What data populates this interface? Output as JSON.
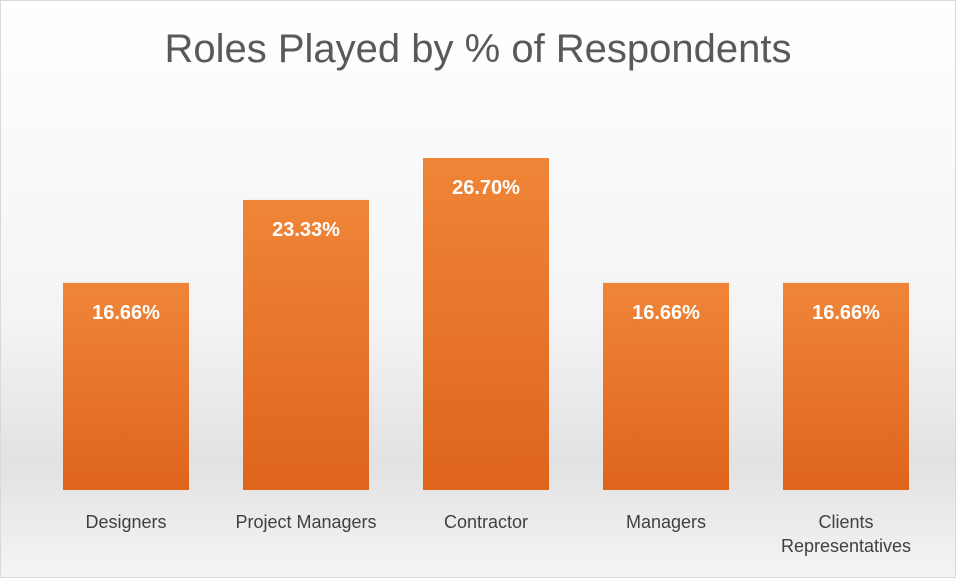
{
  "chart_data": {
    "type": "bar",
    "title": "Roles Played by % of Respondents",
    "categories": [
      "Designers",
      "Project Managers",
      "Contractor",
      "Managers",
      "Clients Representatives"
    ],
    "values": [
      16.66,
      23.33,
      26.7,
      16.66,
      16.66
    ],
    "value_labels": [
      "16.66%",
      "23.33%",
      "26.70%",
      "16.66%",
      "16.66%"
    ],
    "color": "#e8722a",
    "ylim": [
      0,
      30
    ]
  }
}
